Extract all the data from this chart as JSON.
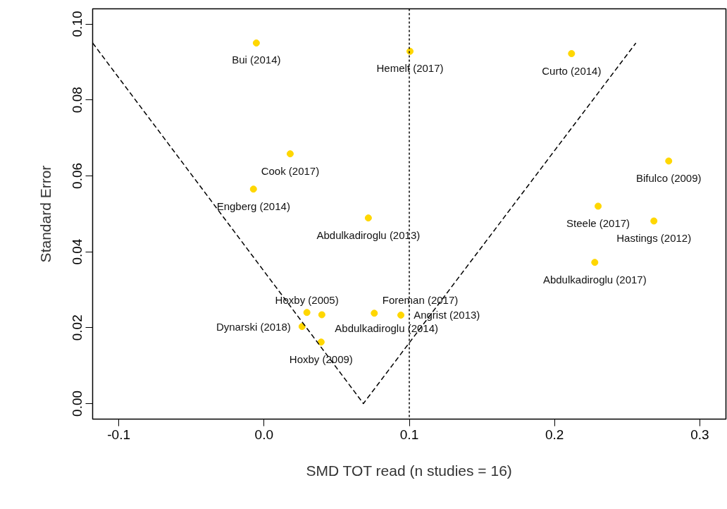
{
  "chart_data": {
    "type": "scatter",
    "xlabel": "SMD TOT read (n studies = 16)",
    "ylabel": "Standard Error",
    "xlim": [
      -0.118,
      0.318
    ],
    "ylim": [
      -0.0041,
      0.104
    ],
    "xticks": [
      -0.1,
      {
        "value": 0,
        "label": "0.0"
      },
      0.1,
      0.2,
      0.3
    ],
    "yticks": [
      {
        "value": 0,
        "label": "0.00"
      },
      {
        "value": 0.02,
        "label": "0.02"
      },
      {
        "value": 0.04,
        "label": "0.04"
      },
      {
        "value": 0.06,
        "label": "0.06"
      },
      {
        "value": 0.08,
        "label": "0.08"
      },
      {
        "value": 0.1,
        "label": "0.10"
      }
    ],
    "ref_lines": [
      {
        "axis": "x",
        "value": 0.1,
        "color": "#000000",
        "line_style": "dotted"
      }
    ],
    "series": [
      {
        "marker": "circle",
        "color": "#ffd700",
        "x": [
          -0.0053,
          0.1005,
          0.2117,
          0.018,
          -0.0073,
          0.0718,
          0.2786,
          0.23,
          0.2684,
          0.2277,
          0.0295,
          0.0398,
          0.0759,
          0.0942,
          0.0262,
          0.0393
        ],
        "values": [
          0.095,
          0.0928,
          0.0922,
          0.0658,
          0.0565,
          0.0489,
          0.0639,
          0.052,
          0.0481,
          0.0372,
          0.024,
          0.0234,
          0.0238,
          0.0233,
          0.0203,
          0.0162
        ]
      },
      {
        "type": "line",
        "color": "#000000",
        "line_style": "dashed",
        "x": [
          -0.118,
          0.0684,
          0.256
        ],
        "values": [
          0.095,
          0,
          0.095
        ]
      }
    ],
    "annotations": [
      {
        "text": "Bui (2014)",
        "x": -0.0053,
        "y": 0.095
      },
      {
        "text": "Hemelt (2017)",
        "x": 0.1005,
        "y": 0.0928
      },
      {
        "text": "Curto (2014)",
        "x": 0.2117,
        "y": 0.0922
      },
      {
        "text": "Cook (2017)",
        "x": 0.018,
        "y": 0.0658
      },
      {
        "text": "Engberg (2014)",
        "x": -0.0073,
        "y": 0.0565
      },
      {
        "text": "Abdulkadiroglu (2013)",
        "x": 0.0718,
        "y": 0.0489
      },
      {
        "text": "Bifulco (2009)",
        "x": 0.2786,
        "y": 0.0639
      },
      {
        "text": "Steele (2017)",
        "x": 0.23,
        "y": 0.052
      },
      {
        "text": "Hastings (2012)",
        "x": 0.2684,
        "y": 0.0481
      },
      {
        "text": "Abdulkadiroglu (2017)",
        "x": 0.2277,
        "y": 0.0372
      },
      {
        "text": "Hoxby (2005)",
        "x": 0.0295,
        "y": 0.024
      },
      {
        "text": "Abdulkadiroglu (2014)",
        "x": 0.0398,
        "y": 0.0234
      },
      {
        "text": "Foreman (2017)",
        "x": 0.0759,
        "y": 0.0238
      },
      {
        "text": "Angrist (2013)",
        "x": 0.0942,
        "y": 0.0233
      },
      {
        "text": "Dynarski (2018)",
        "x": 0.0262,
        "y": 0.0203
      },
      {
        "text": "Hoxby (2009)",
        "x": 0.0393,
        "y": 0.0162
      }
    ]
  }
}
